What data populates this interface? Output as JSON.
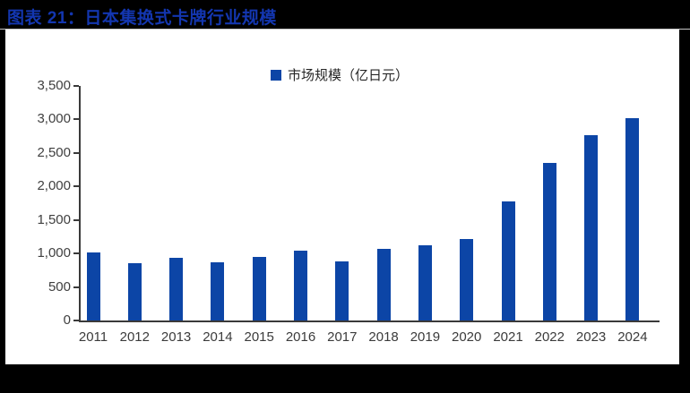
{
  "figure": {
    "title": "图表 21：日本集换式卡牌行业规模"
  },
  "chart_data": {
    "type": "bar",
    "title": "日本集换式卡牌行业规模",
    "legend": "市场规模（亿日元）",
    "legend_position": "top-center",
    "categories": [
      "2011",
      "2012",
      "2013",
      "2014",
      "2015",
      "2016",
      "2017",
      "2018",
      "2019",
      "2020",
      "2021",
      "2022",
      "2023",
      "2024"
    ],
    "values": [
      1010,
      850,
      930,
      870,
      955,
      1040,
      880,
      1065,
      1125,
      1220,
      1780,
      2350,
      2770,
      3025
    ],
    "xlabel": "",
    "ylabel": "",
    "ylim": [
      0,
      3500
    ],
    "ytick_step": 500,
    "ytick_labels": [
      "0",
      "500",
      "1,000",
      "1,500",
      "2,000",
      "2,500",
      "3,000",
      "3,500"
    ],
    "grid": "off",
    "bar_color": "#0C45A6"
  },
  "colors": {
    "title_blue": "#1336B0",
    "bar_blue": "#0C45A6",
    "page_background": "#000000",
    "panel_background": "#ffffff",
    "axis": "#3a3a3a",
    "tick_label": "#3f3f3f",
    "legend_text": "#262626",
    "divider": "#c6c6c6"
  }
}
